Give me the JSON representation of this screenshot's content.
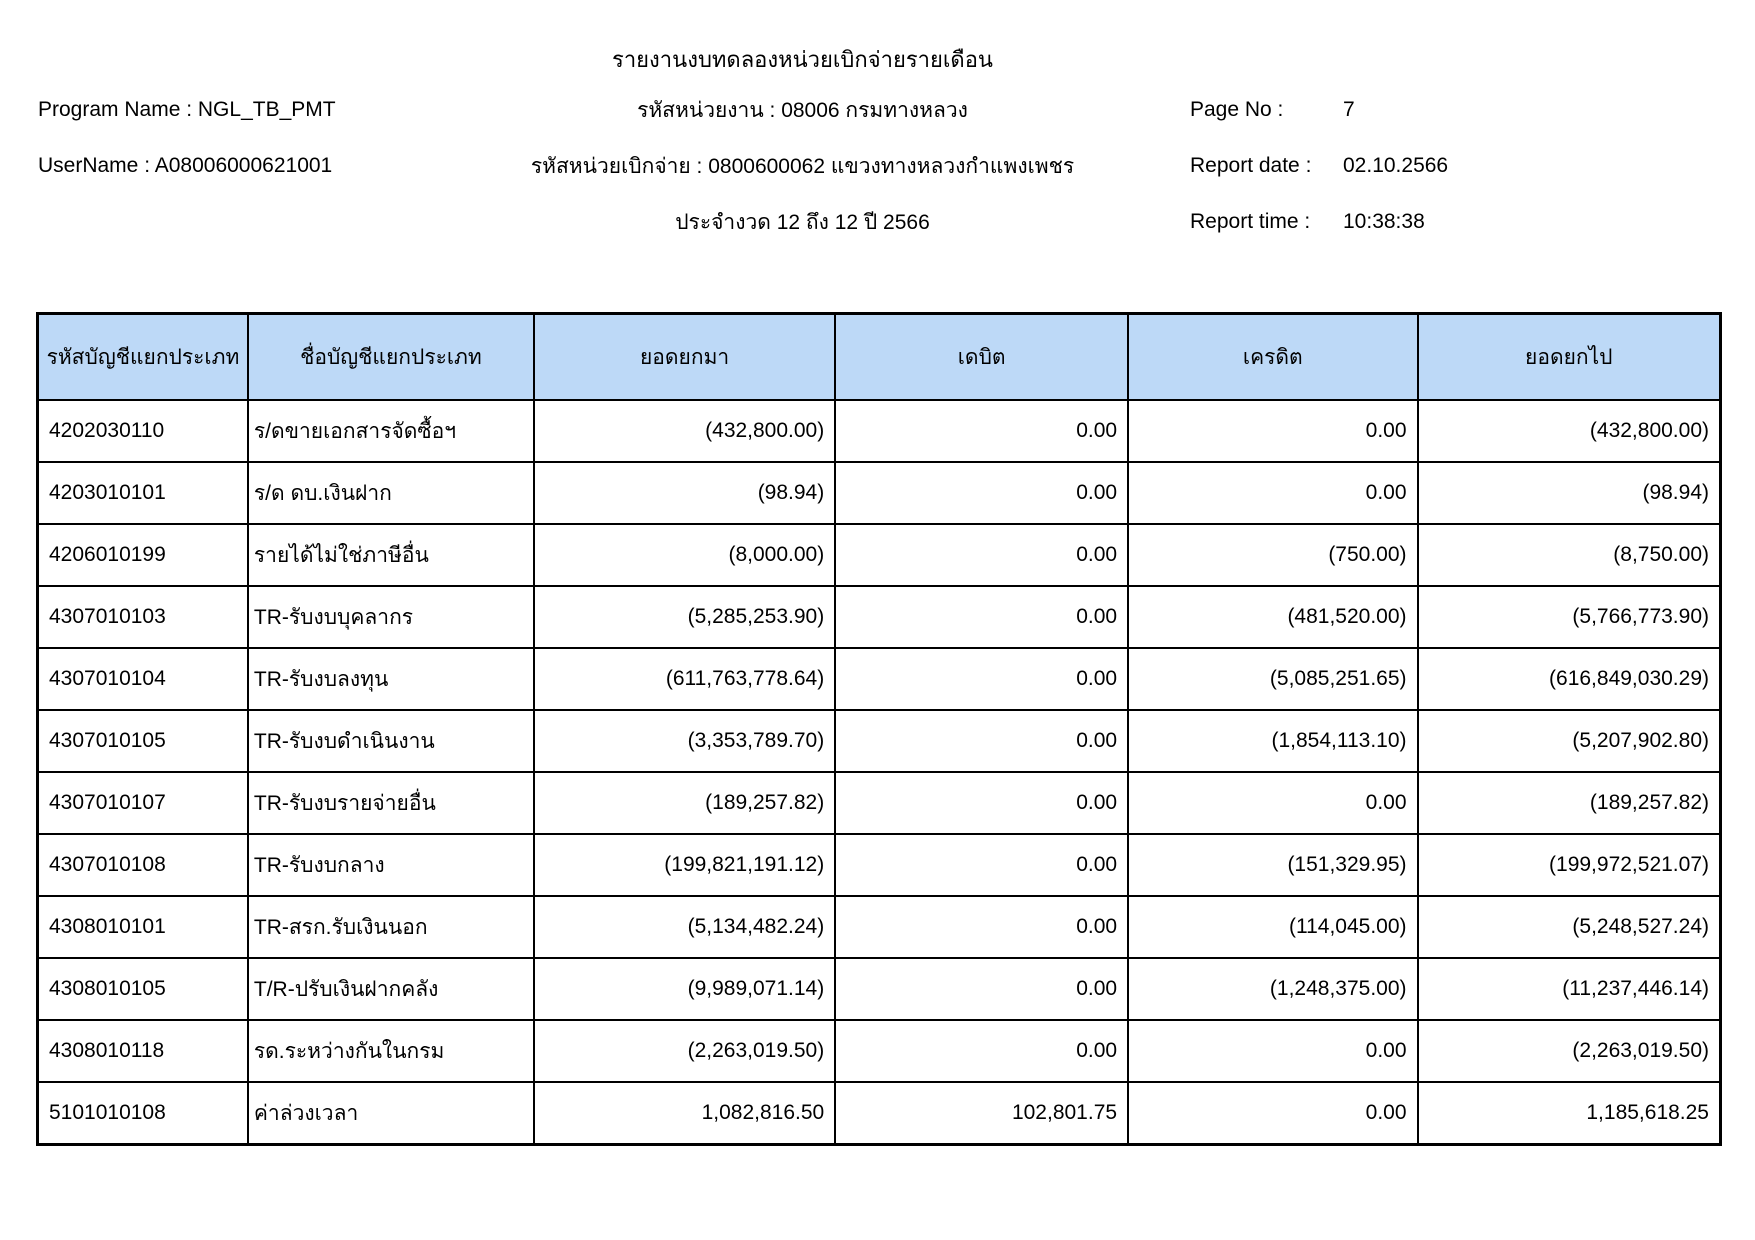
{
  "header": {
    "title": "รายงานงบทดลองหน่วยเบิกจ่ายรายเดือน",
    "program_label": "Program Name :",
    "program_value": "NGL_TB_PMT",
    "username_label": "UserName :",
    "username_value": "A08006000621001",
    "agency_line": "รหัสหน่วยงาน : 08006 กรมทางหลวง",
    "unit_line": "รหัสหน่วยเบิกจ่าย : 0800600062 แขวงทางหลวงกำแพงเพชร",
    "period_line": "ประจำงวด 12 ถึง 12 ปี 2566",
    "page_no_label": "Page No :",
    "page_no_value": "7",
    "report_date_label": "Report date :",
    "report_date_value": "02.10.2566",
    "report_time_label": "Report time :",
    "report_time_value": "10:38:38"
  },
  "table": {
    "columns": [
      "รหัสบัญชีแยกประเภท",
      "ชื่อบัญชีแยกประเภท",
      "ยอดยกมา",
      "เดบิต",
      "เครดิต",
      "ยอดยกไป"
    ],
    "rows": [
      [
        "4202030110",
        "ร/ดขายเอกสารจัดซื้อฯ",
        "(432,800.00)",
        "0.00",
        "0.00",
        "(432,800.00)"
      ],
      [
        "4203010101",
        "ร/ด ดบ.เงินฝาก",
        "(98.94)",
        "0.00",
        "0.00",
        "(98.94)"
      ],
      [
        "4206010199",
        "รายได้ไม่ใช่ภาษีอื่น",
        "(8,000.00)",
        "0.00",
        "(750.00)",
        "(8,750.00)"
      ],
      [
        "4307010103",
        "TR-รับงบบุคลากร",
        "(5,285,253.90)",
        "0.00",
        "(481,520.00)",
        "(5,766,773.90)"
      ],
      [
        "4307010104",
        "TR-รับงบลงทุน",
        "(611,763,778.64)",
        "0.00",
        "(5,085,251.65)",
        "(616,849,030.29)"
      ],
      [
        "4307010105",
        "TR-รับงบดำเนินงาน",
        "(3,353,789.70)",
        "0.00",
        "(1,854,113.10)",
        "(5,207,902.80)"
      ],
      [
        "4307010107",
        "TR-รับงบรายจ่ายอื่น",
        "(189,257.82)",
        "0.00",
        "0.00",
        "(189,257.82)"
      ],
      [
        "4307010108",
        "TR-รับงบกลาง",
        "(199,821,191.12)",
        "0.00",
        "(151,329.95)",
        "(199,972,521.07)"
      ],
      [
        "4308010101",
        "TR-สรก.รับเงินนอก",
        "(5,134,482.24)",
        "0.00",
        "(114,045.00)",
        "(5,248,527.24)"
      ],
      [
        "4308010105",
        "T/R-ปรับเงินฝากคลัง",
        "(9,989,071.14)",
        "0.00",
        "(1,248,375.00)",
        "(11,237,446.14)"
      ],
      [
        "4308010118",
        "รด.ระหว่างกันในกรม",
        "(2,263,019.50)",
        "0.00",
        "0.00",
        "(2,263,019.50)"
      ],
      [
        "5101010108",
        "ค่าล่วงเวลา",
        "1,082,816.50",
        "102,801.75",
        "0.00",
        "1,185,618.25"
      ]
    ]
  },
  "colors": {
    "table_header_bg": "#BDD9F7",
    "border": "#000000"
  }
}
